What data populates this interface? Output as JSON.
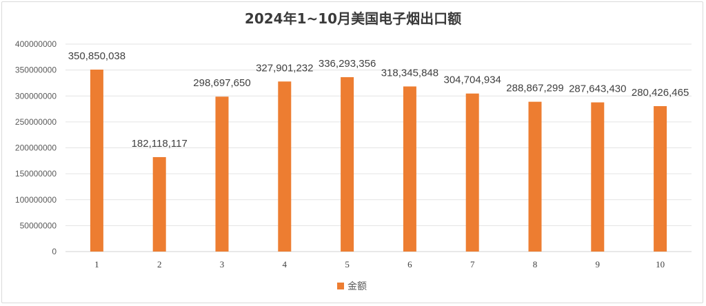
{
  "chart_data": {
    "type": "bar",
    "title": "2024年1~10月美国电子烟出口额",
    "xlabel": "",
    "ylabel": "",
    "categories": [
      "1",
      "2",
      "3",
      "4",
      "5",
      "6",
      "7",
      "8",
      "9",
      "10"
    ],
    "series": [
      {
        "name": "金额",
        "color": "#ED7D31",
        "values": [
          350850038,
          182118117,
          298697650,
          327901232,
          336293356,
          318345848,
          304704934,
          288867299,
          287643430,
          280426465
        ],
        "labels": [
          "350,850,038",
          "182,118,117",
          "298,697,650",
          "327,901,232",
          "336,293,356",
          "318,345,848",
          "304,704,934",
          "288,867,299",
          "287,643,430",
          "280,426,465"
        ]
      }
    ],
    "ylim": [
      0,
      400000000
    ],
    "yticks": [
      0,
      50000000,
      100000000,
      150000000,
      200000000,
      250000000,
      300000000,
      350000000,
      400000000
    ],
    "ytick_labels": [
      "0",
      "50000000",
      "100000000",
      "150000000",
      "200000000",
      "250000000",
      "300000000",
      "350000000",
      "400000000"
    ],
    "grid": true,
    "legend": "bottom-center"
  }
}
